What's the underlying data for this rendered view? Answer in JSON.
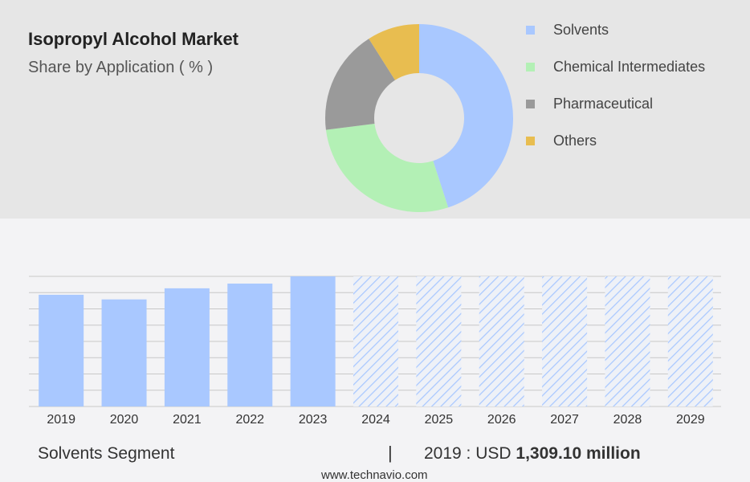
{
  "title": "Isopropyl Alcohol Market",
  "subtitle": "Share by Application ( % )",
  "chart_data": [
    {
      "type": "pie",
      "variant": "donut",
      "categories": [
        "Solvents",
        "Chemical Intermediates",
        "Pharmaceutical",
        "Others"
      ],
      "values": [
        45,
        28,
        18,
        9
      ],
      "colors": [
        "#a9c8ff",
        "#b3f0b5",
        "#9a9a9a",
        "#e8bd50"
      ],
      "legend_position": "right"
    },
    {
      "type": "bar",
      "categories": [
        "2019",
        "2020",
        "2021",
        "2022",
        "2023",
        "2024",
        "2025",
        "2026",
        "2027",
        "2028",
        "2029"
      ],
      "values": [
        1309.1,
        1255,
        1385,
        1440,
        1525,
        null,
        null,
        null,
        null,
        null,
        null
      ],
      "forecast_categories": [
        "2024",
        "2025",
        "2026",
        "2027",
        "2028",
        "2029"
      ],
      "ylim": [
        0,
        1525
      ],
      "bar_color": "#a9c8ff",
      "grid": true
    }
  ],
  "footer": {
    "segment_label": "Solvents Segment",
    "divider": "|",
    "stat_prefix": "2019 : USD",
    "stat_value": "1,309.10 million",
    "source": "www.technavio.com"
  }
}
